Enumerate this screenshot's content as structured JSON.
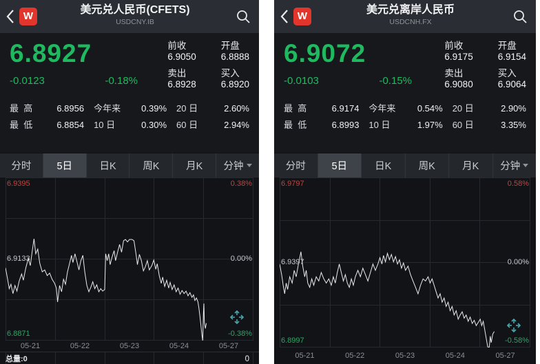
{
  "colors": {
    "price_up_green": "#1fb960",
    "chart_label_red": "#bf4742",
    "chart_label_green": "#2da766",
    "logo_red": "#e2352b",
    "line_color": "#ebebeb",
    "grid_color": "#26292e",
    "pan_icon_teal": "#4aa7ad"
  },
  "tabs": {
    "items": [
      "分时",
      "5日",
      "日K",
      "周K",
      "月K",
      "分钟"
    ],
    "selected": "5日"
  },
  "panels": {
    "left": {
      "header": {
        "logo_text": "W",
        "title": "美元兑人民币(CFETS)",
        "subtitle": "USDCNY.IB"
      },
      "quote": {
        "price": "6.8927",
        "change": "-0.0123",
        "change_pct": "-0.18%",
        "fields": [
          {
            "label": "前收",
            "value": "6.9050"
          },
          {
            "label": "开盘",
            "value": "6.8888"
          },
          {
            "label": "卖出",
            "value": "6.8928"
          },
          {
            "label": "买入",
            "value": "6.8920"
          }
        ]
      },
      "stats": [
        [
          {
            "label": "最  高",
            "value": "6.8956"
          },
          {
            "label": "今年来",
            "value": "0.39%"
          },
          {
            "label": "20 日",
            "value": "2.60%"
          }
        ],
        [
          {
            "label": "最  低",
            "value": "6.8854"
          },
          {
            "label": "10 日",
            "value": "0.30%"
          },
          {
            "label": "60 日",
            "value": "2.94%"
          }
        ]
      ],
      "chart": {
        "type": "line",
        "period": "5日",
        "ylim": [
          6.8871,
          6.9395
        ],
        "labels": {
          "top_price": "6.9395",
          "top_pct": "0.38%",
          "mid_price": "6.9133",
          "mid_pct": "0.00%",
          "bottom_price": "6.8871",
          "bottom_pct": "-0.38%"
        },
        "x_labels": [
          "05-21",
          "05-22",
          "05-23",
          "05-24",
          "05-27"
        ],
        "points": [
          [
            0.0,
            6.9105
          ],
          [
            0.008,
            6.907
          ],
          [
            0.015,
            6.9038
          ],
          [
            0.022,
            6.9052
          ],
          [
            0.03,
            6.9022
          ],
          [
            0.038,
            6.9048
          ],
          [
            0.046,
            6.903
          ],
          [
            0.055,
            6.9062
          ],
          [
            0.065,
            6.9085
          ],
          [
            0.072,
            6.9065
          ],
          [
            0.082,
            6.9105
          ],
          [
            0.092,
            6.9135
          ],
          [
            0.1,
            6.9112
          ],
          [
            0.108,
            6.916
          ],
          [
            0.115,
            6.9198
          ],
          [
            0.122,
            6.915
          ],
          [
            0.13,
            6.9165
          ],
          [
            0.138,
            6.912
          ],
          [
            0.148,
            6.9092
          ],
          [
            0.158,
            6.9098
          ],
          [
            0.168,
            6.908
          ],
          [
            0.178,
            6.9088
          ],
          [
            0.188,
            6.9068
          ],
          [
            0.198,
            6.9055
          ],
          [
            0.205,
            6.904
          ],
          [
            0.21,
            6.8995
          ],
          [
            0.218,
            6.9048
          ],
          [
            0.226,
            6.9028
          ],
          [
            0.234,
            6.9068
          ],
          [
            0.242,
            6.9052
          ],
          [
            0.25,
            6.9092
          ],
          [
            0.258,
            6.9118
          ],
          [
            0.266,
            6.9145
          ],
          [
            0.272,
            6.9122
          ],
          [
            0.28,
            6.915
          ],
          [
            0.288,
            6.9125
          ],
          [
            0.296,
            6.9098
          ],
          [
            0.304,
            6.9128
          ],
          [
            0.312,
            6.9145
          ],
          [
            0.32,
            6.909
          ],
          [
            0.328,
            6.9048
          ],
          [
            0.336,
            6.9028
          ],
          [
            0.344,
            6.9042
          ],
          [
            0.352,
            6.906
          ],
          [
            0.36,
            6.9038
          ],
          [
            0.368,
            6.905
          ],
          [
            0.376,
            6.9028
          ],
          [
            0.384,
            6.9038
          ],
          [
            0.392,
            6.903
          ],
          [
            0.4,
            6.9035
          ],
          [
            0.404,
            6.915
          ],
          [
            0.41,
            6.9128
          ],
          [
            0.416,
            6.915
          ],
          [
            0.422,
            6.9115
          ],
          [
            0.43,
            6.914
          ],
          [
            0.438,
            6.916
          ],
          [
            0.444,
            6.9128
          ],
          [
            0.452,
            6.9155
          ],
          [
            0.46,
            6.918
          ],
          [
            0.468,
            6.9155
          ],
          [
            0.476,
            6.9192
          ],
          [
            0.484,
            6.9196
          ],
          [
            0.492,
            6.9188
          ],
          [
            0.5,
            6.9196
          ],
          [
            0.51,
            6.9196
          ],
          [
            0.518,
            6.9192
          ],
          [
            0.526,
            6.915
          ],
          [
            0.532,
            6.9115
          ],
          [
            0.54,
            6.9148
          ],
          [
            0.548,
            6.9128
          ],
          [
            0.556,
            6.9095
          ],
          [
            0.564,
            6.9108
          ],
          [
            0.572,
            6.9128
          ],
          [
            0.58,
            6.9098
          ],
          [
            0.59,
            6.9112
          ],
          [
            0.598,
            6.913
          ],
          [
            0.606,
            6.91
          ],
          [
            0.612,
            6.9118
          ],
          [
            0.62,
            6.908
          ],
          [
            0.628,
            6.9055
          ],
          [
            0.634,
            6.9075
          ],
          [
            0.642,
            6.9045
          ],
          [
            0.65,
            6.9065
          ],
          [
            0.658,
            6.904
          ],
          [
            0.664,
            6.9058
          ],
          [
            0.672,
            6.9035
          ],
          [
            0.68,
            6.905
          ],
          [
            0.688,
            6.9028
          ],
          [
            0.696,
            6.904
          ],
          [
            0.704,
            6.902
          ],
          [
            0.712,
            6.9032
          ],
          [
            0.72,
            6.9022
          ],
          [
            0.728,
            6.903
          ],
          [
            0.736,
            6.9015
          ],
          [
            0.744,
            6.9025
          ],
          [
            0.752,
            6.901
          ],
          [
            0.758,
            6.9018
          ],
          [
            0.764,
            6.9
          ],
          [
            0.77,
            6.9008
          ],
          [
            0.776,
            6.8995
          ],
          [
            0.78,
            6.8975
          ],
          [
            0.784,
            6.895
          ],
          [
            0.788,
            6.892
          ],
          [
            0.792,
            6.889
          ],
          [
            0.795,
            6.8871
          ],
          [
            0.798,
            6.8955
          ],
          [
            0.8,
            6.899
          ],
          [
            0.802,
            6.893
          ],
          [
            0.806,
            6.891
          ],
          [
            0.81,
            6.8927
          ]
        ]
      },
      "volume": {
        "label": "总量:0",
        "right_value": "0"
      }
    },
    "right": {
      "header": {
        "logo_text": "W",
        "title": "美元兑离岸人民币",
        "subtitle": "USDCNH.FX"
      },
      "quote": {
        "price": "6.9072",
        "change": "-0.0103",
        "change_pct": "-0.15%",
        "fields": [
          {
            "label": "前收",
            "value": "6.9175"
          },
          {
            "label": "开盘",
            "value": "6.9154"
          },
          {
            "label": "卖出",
            "value": "6.9080"
          },
          {
            "label": "买入",
            "value": "6.9064"
          }
        ]
      },
      "stats": [
        [
          {
            "label": "最  高",
            "value": "6.9174"
          },
          {
            "label": "今年来",
            "value": "0.54%"
          },
          {
            "label": "20 日",
            "value": "2.90%"
          }
        ],
        [
          {
            "label": "最  低",
            "value": "6.8993"
          },
          {
            "label": "10 日",
            "value": "1.97%"
          },
          {
            "label": "60 日",
            "value": "3.35%"
          }
        ]
      ],
      "chart": {
        "type": "line",
        "period": "5日",
        "ylim": [
          6.8997,
          6.9797
        ],
        "labels": {
          "top_price": "6.9797",
          "top_pct": "0.58%",
          "mid_price": "6.9397",
          "mid_pct": "0.00%",
          "bottom_price": "6.8997",
          "bottom_pct": "-0.58%"
        },
        "x_labels": [
          "05-21",
          "05-22",
          "05-23",
          "05-24",
          "05-27"
        ],
        "points": [
          [
            0.0,
            6.939
          ],
          [
            0.008,
            6.934
          ],
          [
            0.014,
            6.929
          ],
          [
            0.02,
            6.925
          ],
          [
            0.026,
            6.93
          ],
          [
            0.032,
            6.927
          ],
          [
            0.04,
            6.933
          ],
          [
            0.05,
            6.93
          ],
          [
            0.058,
            6.936
          ],
          [
            0.066,
            6.933
          ],
          [
            0.075,
            6.939
          ],
          [
            0.085,
            6.9448
          ],
          [
            0.092,
            6.938
          ],
          [
            0.1,
            6.933
          ],
          [
            0.106,
            6.936
          ],
          [
            0.112,
            6.93
          ],
          [
            0.12,
            6.928
          ],
          [
            0.128,
            6.932
          ],
          [
            0.136,
            6.929
          ],
          [
            0.146,
            6.933
          ],
          [
            0.156,
            6.931
          ],
          [
            0.166,
            6.935
          ],
          [
            0.176,
            6.932
          ],
          [
            0.186,
            6.93
          ],
          [
            0.196,
            6.932
          ],
          [
            0.206,
            6.929
          ],
          [
            0.214,
            6.933
          ],
          [
            0.222,
            6.93
          ],
          [
            0.23,
            6.935
          ],
          [
            0.238,
            6.939
          ],
          [
            0.246,
            6.935
          ],
          [
            0.254,
            6.931
          ],
          [
            0.262,
            6.934
          ],
          [
            0.27,
            6.93
          ],
          [
            0.278,
            6.928
          ],
          [
            0.286,
            6.932
          ],
          [
            0.294,
            6.929
          ],
          [
            0.302,
            6.933
          ],
          [
            0.312,
            6.936
          ],
          [
            0.322,
            6.933
          ],
          [
            0.332,
            6.937
          ],
          [
            0.342,
            6.934
          ],
          [
            0.352,
            6.931
          ],
          [
            0.362,
            6.935
          ],
          [
            0.372,
            6.939
          ],
          [
            0.382,
            6.936
          ],
          [
            0.392,
            6.939
          ],
          [
            0.4,
            6.942
          ],
          [
            0.408,
            6.939
          ],
          [
            0.414,
            6.943
          ],
          [
            0.422,
            6.94
          ],
          [
            0.43,
            6.944
          ],
          [
            0.438,
            6.941
          ],
          [
            0.446,
            6.9435
          ],
          [
            0.454,
            6.94
          ],
          [
            0.462,
            6.9425
          ],
          [
            0.47,
            6.939
          ],
          [
            0.478,
            6.941
          ],
          [
            0.486,
            6.937
          ],
          [
            0.494,
            6.9395
          ],
          [
            0.502,
            6.936
          ],
          [
            0.512,
            6.938
          ],
          [
            0.522,
            6.934
          ],
          [
            0.532,
            6.931
          ],
          [
            0.542,
            6.928
          ],
          [
            0.552,
            6.925
          ],
          [
            0.562,
            6.929
          ],
          [
            0.572,
            6.932
          ],
          [
            0.582,
            6.931
          ],
          [
            0.592,
            6.933
          ],
          [
            0.6,
            6.93
          ],
          [
            0.608,
            6.932
          ],
          [
            0.616,
            6.929
          ],
          [
            0.624,
            6.926
          ],
          [
            0.632,
            6.923
          ],
          [
            0.64,
            6.925
          ],
          [
            0.648,
            6.921
          ],
          [
            0.656,
            6.923
          ],
          [
            0.664,
            6.919
          ],
          [
            0.672,
            6.921
          ],
          [
            0.68,
            6.917
          ],
          [
            0.688,
            6.919
          ],
          [
            0.696,
            6.915
          ],
          [
            0.704,
            6.917
          ],
          [
            0.712,
            6.913
          ],
          [
            0.72,
            6.915
          ],
          [
            0.728,
            6.9165
          ],
          [
            0.736,
            6.9135
          ],
          [
            0.744,
            6.915
          ],
          [
            0.752,
            6.912
          ],
          [
            0.76,
            6.914
          ],
          [
            0.768,
            6.911
          ],
          [
            0.776,
            6.9125
          ],
          [
            0.784,
            6.91
          ],
          [
            0.792,
            6.9115
          ],
          [
            0.8,
            6.913
          ],
          [
            0.806,
            6.91
          ],
          [
            0.812,
            6.912
          ],
          [
            0.818,
            6.908
          ],
          [
            0.824,
            6.904
          ],
          [
            0.83,
            6.9
          ],
          [
            0.836,
            6.8997
          ],
          [
            0.84,
            6.905
          ],
          [
            0.844,
            6.902
          ],
          [
            0.85,
            6.906
          ],
          [
            0.856,
            6.9072
          ]
        ]
      }
    }
  }
}
